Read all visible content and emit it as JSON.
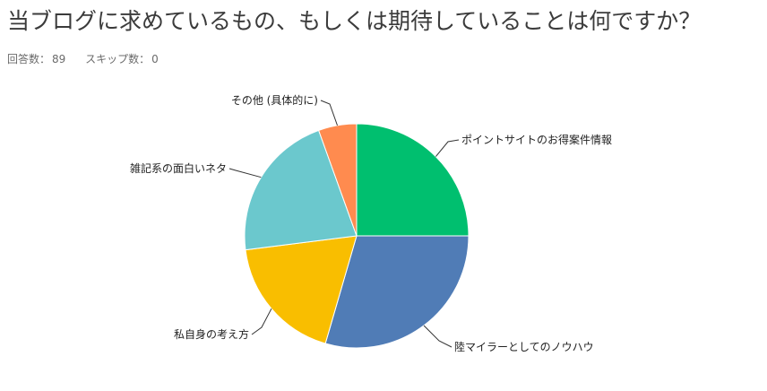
{
  "question": {
    "title": "当ブログに求めているもの、もしくは期待していることは何ですか？"
  },
  "stats": {
    "responses_label": "回答数：",
    "responses_value": "89",
    "skips_label": "スキップ数：",
    "skips_value": "0"
  },
  "chart_data": {
    "type": "pie",
    "start_angle": "12 o'clock, clockwise",
    "slices": [
      {
        "label": "ポイントサイトのお得案件情報",
        "value": 25.0,
        "color": "#00bf6f"
      },
      {
        "label": "陸マイラーとしてのノウハウ",
        "value": 29.5,
        "color": "#507cb6"
      },
      {
        "label": "私自身の考え方",
        "value": 18.5,
        "color": "#f9be00"
      },
      {
        "label": "雑記系の面白いネタ",
        "value": 21.5,
        "color": "#6bc8cd"
      },
      {
        "label": "その他 (具体的に)",
        "value": 5.5,
        "color": "#ff8b4f"
      }
    ]
  }
}
